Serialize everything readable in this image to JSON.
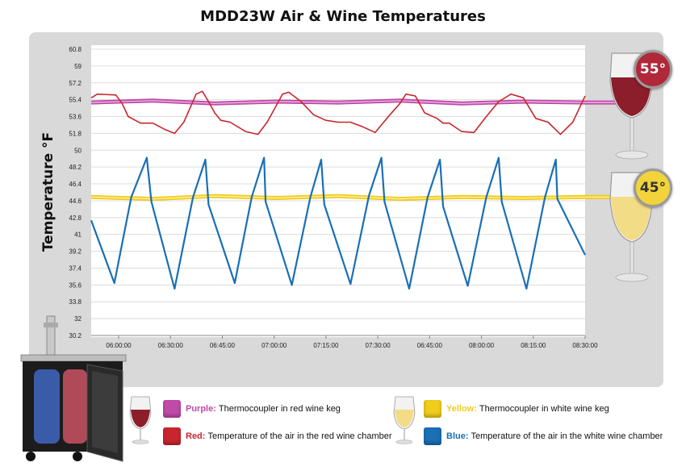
{
  "title": "MDD23W Air & Wine Temperatures",
  "badges": {
    "red_wine": {
      "label": "55°",
      "color": "#b0283a",
      "text_color": "#ffffff"
    },
    "white_wine": {
      "label": "45°",
      "color": "#f2d43a",
      "text_color": "#333333"
    }
  },
  "legend": [
    {
      "key": "Purple:",
      "desc": "Thermocoupler in red wine keg",
      "color": "#c04aa8"
    },
    {
      "key": "Red:",
      "desc": "Temperature of the air in the red wine chamber",
      "color": "#c8262e"
    },
    {
      "key": "Yellow:",
      "desc": "Thermocoupler in white wine keg",
      "color": "#f0cc1c"
    },
    {
      "key": "Blue:",
      "desc": "Temperature of the air in the white wine chamber",
      "color": "#1a6fb5"
    }
  ],
  "icons": [
    "red-wine-glass-icon",
    "white-wine-glass-icon",
    "kegerator-icon"
  ],
  "chart_data": {
    "type": "line",
    "title": "MDD23W Air & Wine Temperatures",
    "ylabel": "Temperature °F",
    "xlabel": "",
    "ylim": [
      30.2,
      60.8
    ],
    "yticks": [
      "60.8",
      "59",
      "57.2",
      "55.4",
      "53.6",
      "51.8",
      "50",
      "48.2",
      "46.4",
      "44.6",
      "42.8",
      "41",
      "39.2",
      "37.4",
      "35.6",
      "33.8",
      "32",
      "30.2"
    ],
    "xticks": [
      "06:00:00",
      "06:30:00",
      "06:45:00",
      "07:00:00",
      "07:15:00",
      "07:30:00",
      "06:45:00",
      "08:00:00",
      "08:15:00",
      "08:30:00"
    ],
    "xlim_minutes": [
      350,
      510
    ],
    "grid": true,
    "series": [
      {
        "name": "Purple",
        "color": "#c04aa8",
        "x": [
          350,
          370,
          390,
          410,
          430,
          450,
          470,
          490,
          510
        ],
        "y": [
          55.1,
          55.3,
          55.0,
          55.2,
          55.1,
          55.3,
          55.0,
          55.2,
          55.1
        ]
      },
      {
        "name": "Red",
        "color": "#c8262e",
        "x": [
          350,
          352,
          358,
          360,
          362,
          366,
          370,
          374,
          377,
          380,
          382,
          384,
          386,
          388,
          390,
          392,
          395,
          400,
          404,
          407,
          410,
          412,
          414,
          418,
          422,
          426,
          430,
          434,
          438,
          442,
          446,
          450,
          452,
          455,
          458,
          462,
          464,
          466,
          470,
          474,
          478,
          482,
          486,
          490,
          494,
          498,
          502,
          506,
          510
        ],
        "y": [
          55.6,
          56.0,
          55.9,
          55.0,
          53.6,
          52.9,
          52.9,
          52.2,
          51.8,
          53.0,
          54.5,
          56.0,
          56.3,
          55.2,
          54.0,
          53.2,
          53.0,
          52.0,
          51.7,
          53.0,
          54.8,
          56.0,
          56.2,
          55.2,
          53.8,
          53.2,
          53.0,
          53.0,
          52.5,
          51.9,
          53.5,
          55.0,
          56.0,
          55.8,
          54.0,
          53.4,
          52.9,
          52.9,
          52.0,
          51.9,
          53.6,
          55.2,
          56.0,
          55.6,
          53.4,
          53.0,
          51.7,
          53.0,
          55.8
        ]
      },
      {
        "name": "Yellow",
        "color": "#f0cc1c",
        "x": [
          350,
          370,
          390,
          410,
          430,
          450,
          470,
          490,
          510
        ],
        "y": [
          45.0,
          44.8,
          45.1,
          44.9,
          45.1,
          44.8,
          45.0,
          44.9,
          45.0
        ],
        "low_y": [
          44.6,
          44.5,
          44.6,
          44.5,
          44.7,
          44.5,
          44.6,
          44.5,
          44.6
        ]
      },
      {
        "name": "Blue",
        "color": "#1a6fb5",
        "x": [
          350,
          357.5,
          363,
          368,
          369.5,
          377,
          383,
          387,
          388,
          396.5,
          402,
          406,
          406.5,
          415,
          421,
          424.5,
          425.5,
          434,
          440,
          444,
          445,
          453,
          459,
          463,
          464,
          472,
          478,
          482,
          483,
          491,
          497,
          500.5,
          501,
          510
        ],
        "y": [
          42.5,
          35.8,
          45.0,
          49.2,
          44.5,
          35.2,
          45.0,
          49.0,
          44.2,
          35.8,
          45.0,
          49.2,
          44.5,
          35.6,
          45.0,
          49.0,
          44.2,
          35.7,
          45.2,
          49.2,
          44.5,
          35.2,
          45.0,
          49.0,
          44.0,
          35.5,
          45.0,
          49.2,
          44.5,
          35.2,
          45.0,
          49.0,
          44.8,
          38.8
        ]
      }
    ]
  }
}
